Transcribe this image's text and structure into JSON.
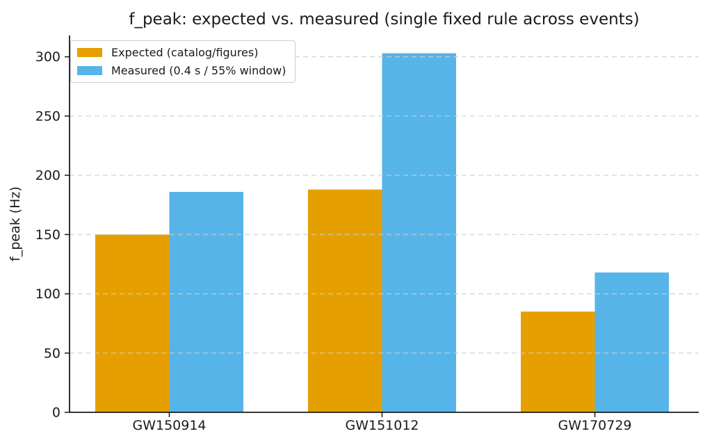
{
  "chart_data": {
    "type": "bar",
    "title": "f_peak: expected vs. measured (single fixed rule across events)",
    "xlabel": "",
    "ylabel": "f_peak (Hz)",
    "categories": [
      "GW150914",
      "GW151012",
      "GW170729"
    ],
    "series": [
      {
        "name": "Expected (catalog/figures)",
        "color": "#E69F00",
        "values": [
          150,
          188,
          85
        ]
      },
      {
        "name": "Measured (0.4 s / 55% window)",
        "color": "#56B4E9",
        "values": [
          186,
          303,
          118
        ]
      }
    ],
    "yticks": [
      0,
      50,
      100,
      150,
      200,
      250,
      300
    ],
    "ylim": [
      0,
      318
    ],
    "grid": "horizontal-dashed",
    "legend_position": "upper-left",
    "colors": {
      "axis": "#1a1a1a",
      "grid": "#cdcdcd",
      "text": "#1a1a1a",
      "background": "#ffffff"
    }
  }
}
